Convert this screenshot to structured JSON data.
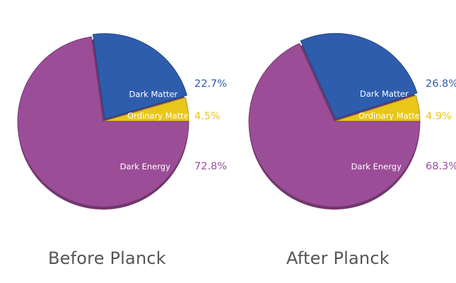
{
  "colors": {
    "dark_energy": "#9C4D97",
    "dark_matter": "#2E5DAE",
    "ordinary_matter": "#E8C71A",
    "caption": "#555555",
    "slice_label": "#ffffff"
  },
  "chart_data": [
    {
      "type": "pie",
      "title": "Before Planck",
      "slices": [
        {
          "label": "Dark Matter",
          "value": 22.7,
          "value_label": "22.7%",
          "color": "#2E5DAE"
        },
        {
          "label": "Ordinary Matter",
          "value": 4.5,
          "value_label": "4.5%",
          "color": "#E8C71A"
        },
        {
          "label": "Dark Energy",
          "value": 72.8,
          "value_label": "72.8%",
          "color": "#9C4D97"
        }
      ]
    },
    {
      "type": "pie",
      "title": "After Planck",
      "slices": [
        {
          "label": "Dark Matter",
          "value": 26.8,
          "value_label": "26.8%",
          "color": "#2E5DAE"
        },
        {
          "label": "Ordinary Matter",
          "value": 4.9,
          "value_label": "4.9%",
          "color": "#E8C71A"
        },
        {
          "label": "Dark Energy",
          "value": 68.3,
          "value_label": "68.3%",
          "color": "#9C4D97"
        }
      ]
    }
  ]
}
